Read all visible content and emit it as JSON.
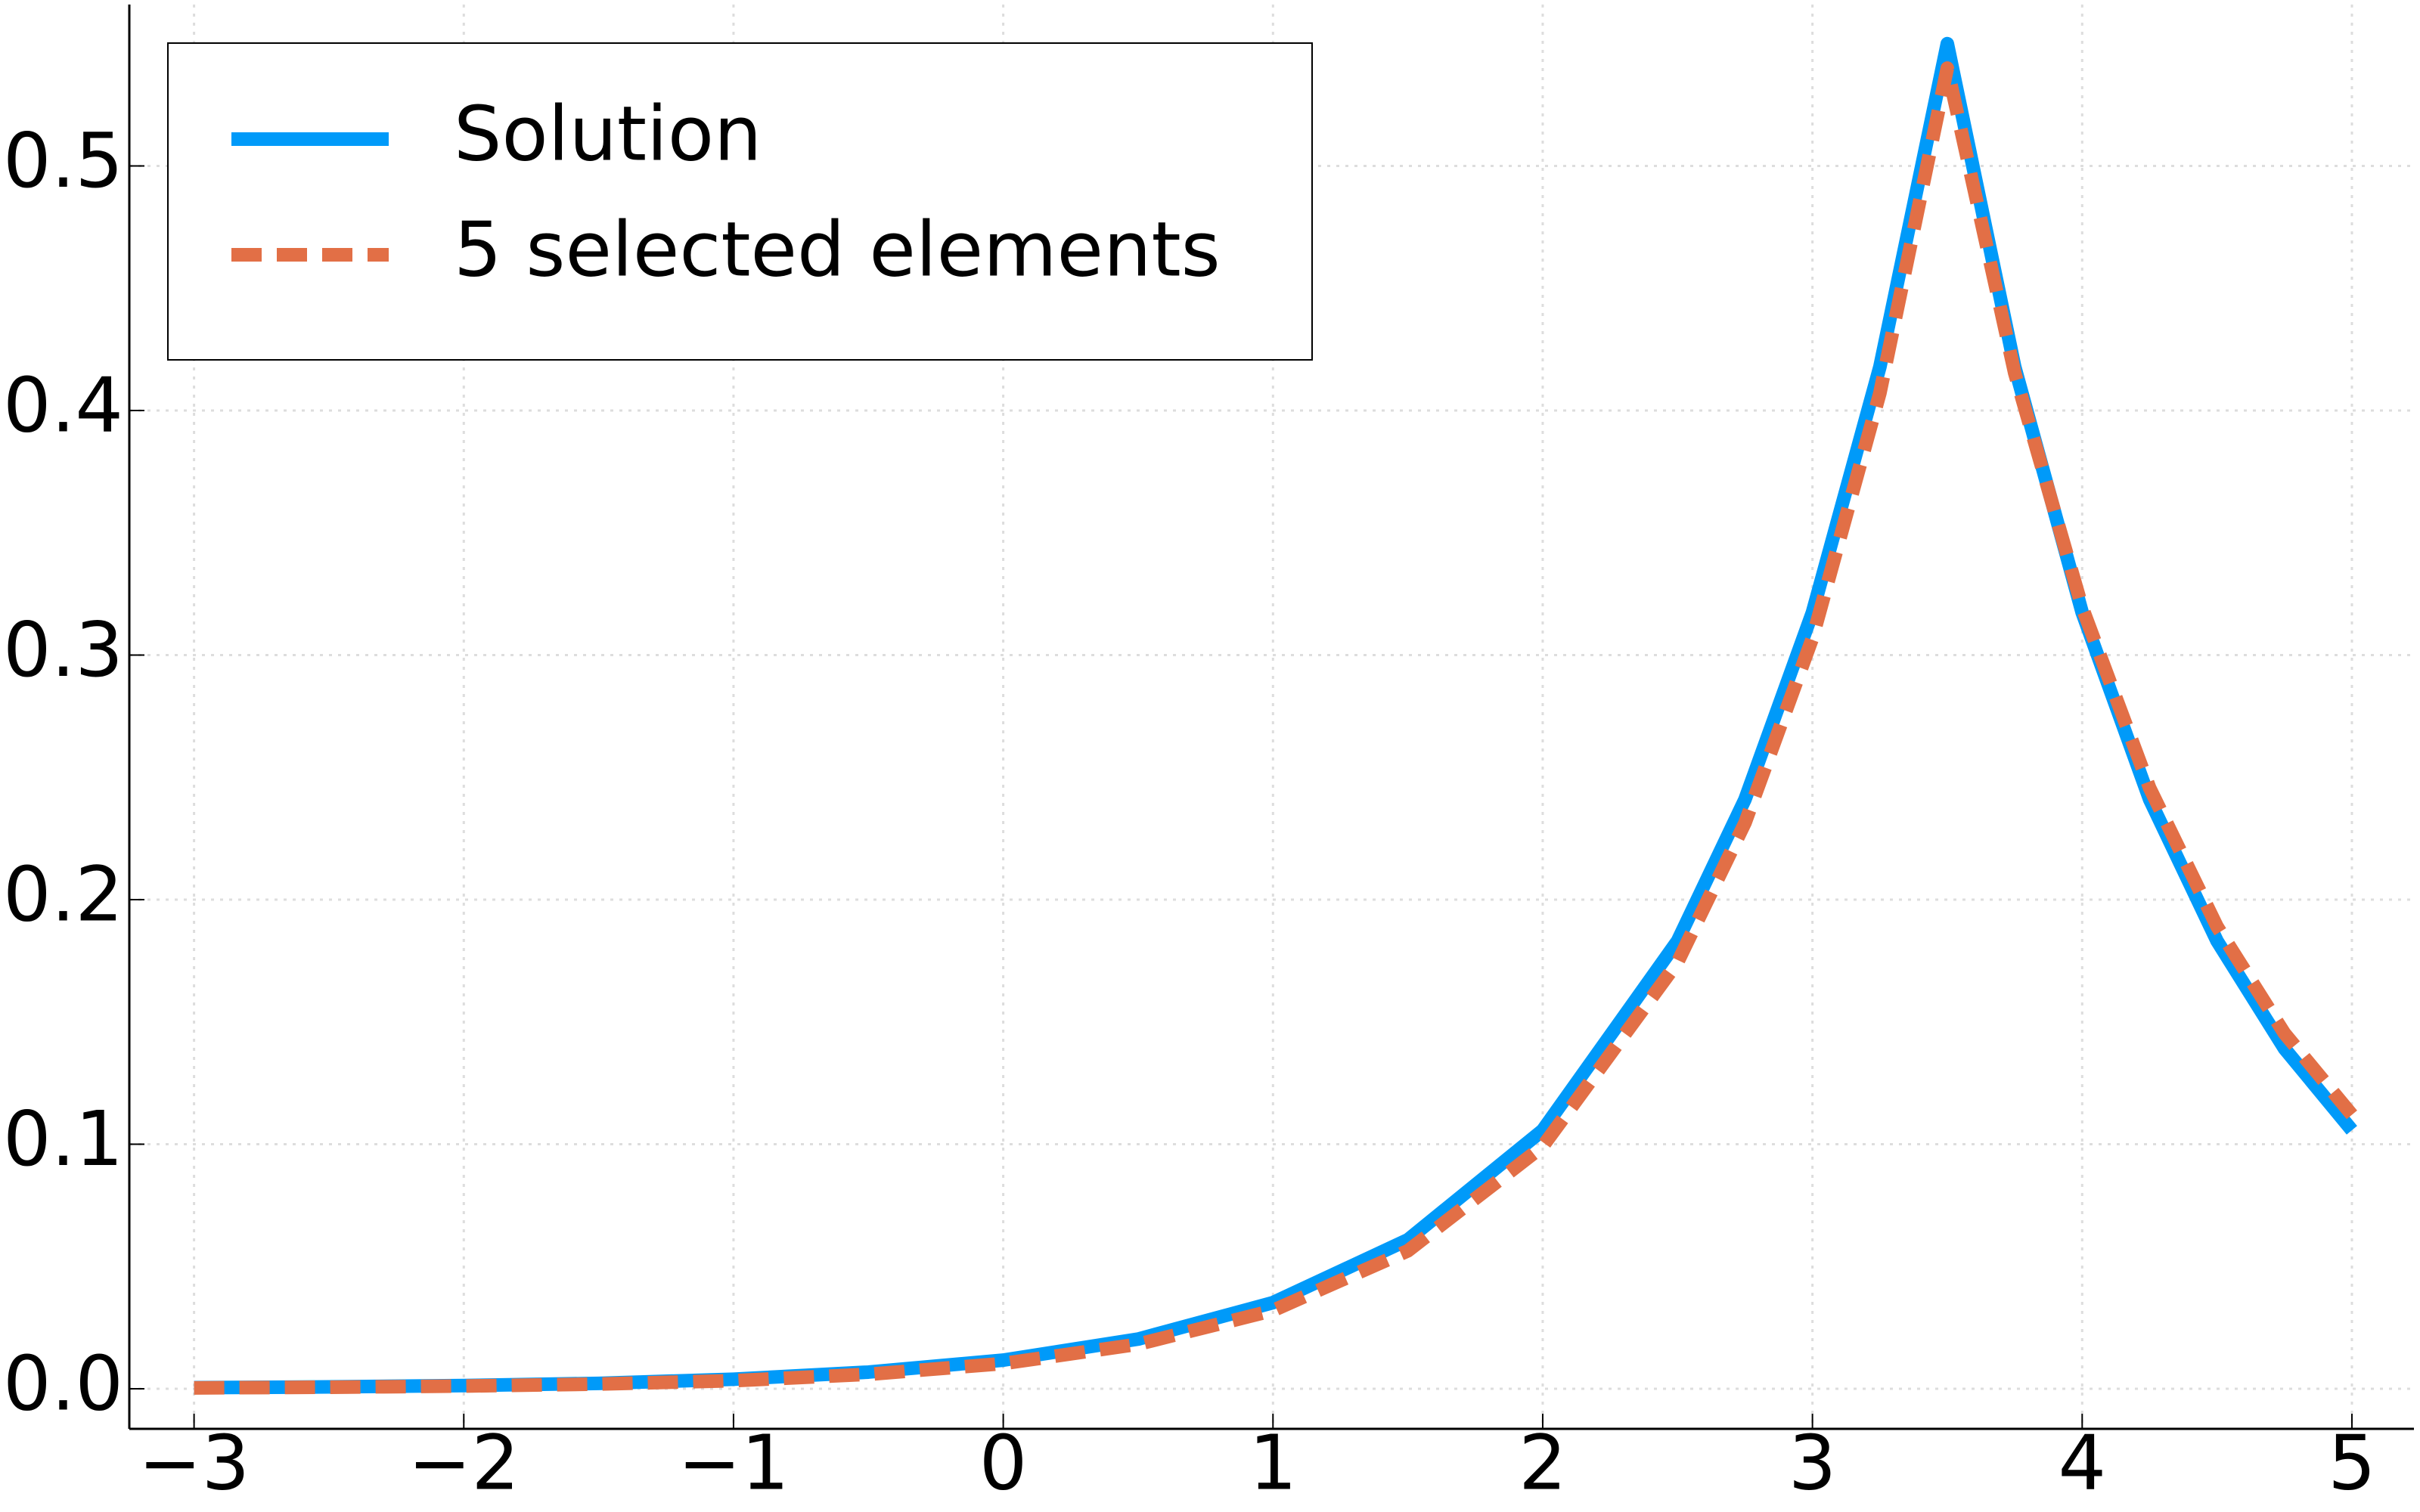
{
  "chart_data": {
    "type": "line",
    "x": [
      -3,
      -2.5,
      -2,
      -1.5,
      -1,
      -0.5,
      0,
      0.5,
      1,
      1.5,
      2,
      2.5,
      2.75,
      3,
      3.25,
      3.5,
      3.75,
      4,
      4.25,
      4.5,
      4.75,
      5
    ],
    "series": [
      {
        "name": "Solution",
        "color": "#009af9",
        "dash": false,
        "values": [
          0.00043,
          0.00075,
          0.0013,
          0.0022,
          0.0039,
          0.0068,
          0.0117,
          0.0203,
          0.0352,
          0.0609,
          0.1057,
          0.1831,
          0.241,
          0.3174,
          0.4178,
          0.55,
          0.4178,
          0.3174,
          0.241,
          0.1831,
          0.1391,
          0.1057
        ]
      },
      {
        "name": "5 selected elements",
        "color": "#e26f46",
        "dash": true,
        "values": [
          0.00035,
          0.00061,
          0.0011,
          0.0019,
          0.0033,
          0.0059,
          0.0103,
          0.0182,
          0.032,
          0.0564,
          0.0991,
          0.1744,
          0.2314,
          0.3069,
          0.4071,
          0.54,
          0.4153,
          0.3195,
          0.2457,
          0.189,
          0.1453,
          0.112
        ]
      }
    ],
    "xlim": [
      -3.24,
      5.23
    ],
    "ylim": [
      -0.0164,
      0.566
    ],
    "xticks": [
      {
        "value": -3,
        "label": "−3"
      },
      {
        "value": -2,
        "label": "−2"
      },
      {
        "value": -1,
        "label": "−1"
      },
      0,
      1,
      2,
      3,
      4,
      5
    ],
    "yticks": [
      {
        "value": 0,
        "label": "0.0"
      },
      0.1,
      0.2,
      0.3,
      0.4,
      0.5
    ],
    "grid": true,
    "legend": "top-left"
  }
}
